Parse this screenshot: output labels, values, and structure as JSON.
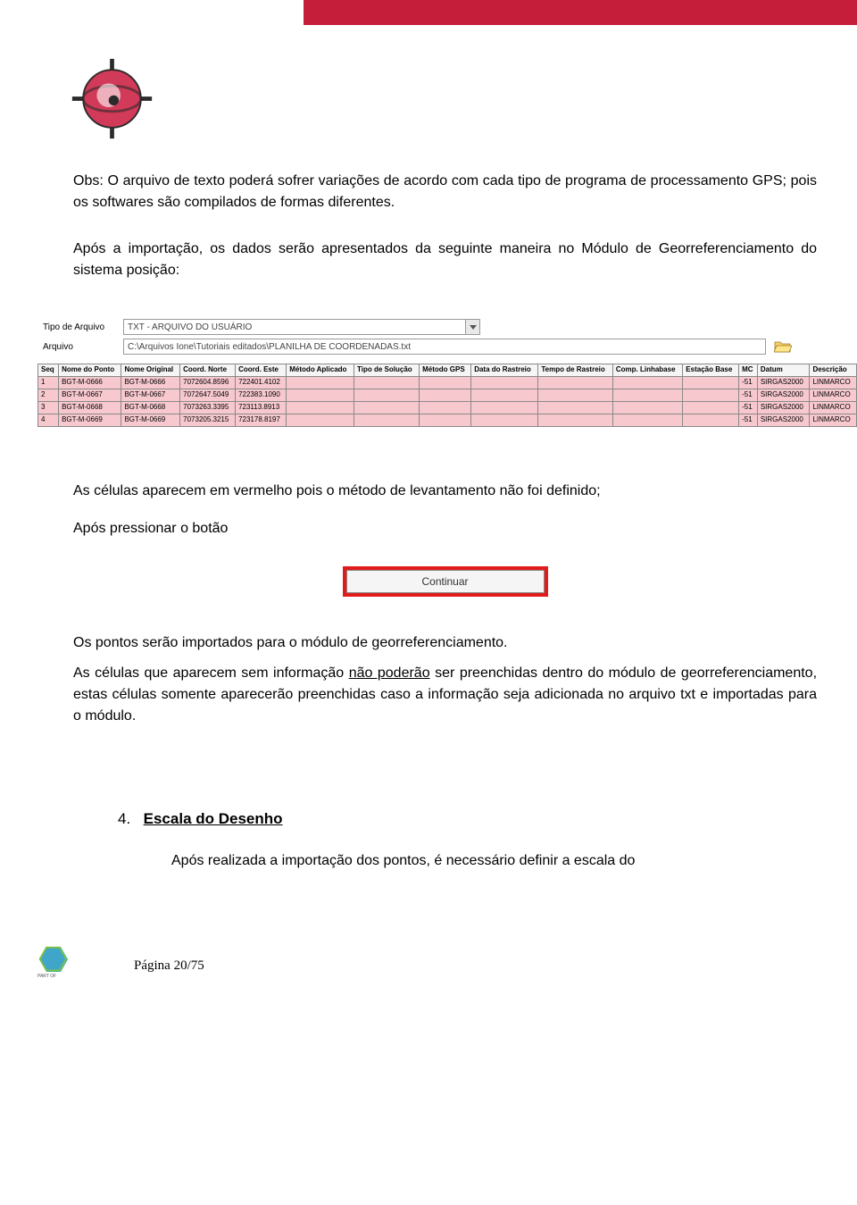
{
  "colors": {
    "header_bar": "#c41e3a",
    "row_highlight": "#f7c9cf",
    "button_border": "#e11b1b",
    "text": "#000000",
    "background": "#ffffff"
  },
  "paragraphs": {
    "p1": "Obs: O arquivo de texto poderá sofrer variações de acordo com cada tipo de programa de processamento GPS; pois os softwares são compilados de formas diferentes.",
    "p2": "Após a importação, os dados serão apresentados da seguinte maneira no Módulo de Georreferenciamento do sistema posição:",
    "p3": "As células aparecem em vermelho pois o método de levantamento não foi definido;",
    "p4": "Após pressionar o botão",
    "p5": "Os pontos serão importados para o módulo de georreferenciamento.",
    "p6a": "As células que aparecem sem informação ",
    "p6u": "não poderão",
    "p6b": " ser preenchidas dentro do módulo de  georreferenciamento, estas células somente aparecerão preenchidas caso a informação seja adicionada no arquivo txt e importadas para o módulo."
  },
  "section4": {
    "number": "4.",
    "title": "Escala do Desenho",
    "body": "Após realizada a importação dos pontos, é necessário definir a escala do"
  },
  "screenshot": {
    "field_labels": {
      "tipo_arquivo": "Tipo de Arquivo",
      "arquivo": "Arquivo"
    },
    "field_values": {
      "tipo_arquivo": "TXT - ARQUIVO DO USUÁRIO",
      "arquivo": "C:\\Arquivos Ione\\Tutoriais editados\\PLANILHA DE COORDENADAS.txt"
    },
    "columns": [
      "Seq",
      "Nome do Ponto",
      "Nome Original",
      "Coord. Norte",
      "Coord. Este",
      "Método Aplicado",
      "Tipo de Solução",
      "Método GPS",
      "Data do Rastreio",
      "Tempo de Rastreio",
      "Comp. Linhabase",
      "Estação Base",
      "MC",
      "Datum",
      "Descrição"
    ],
    "rows": [
      {
        "seq": "1",
        "nome": "BGT-M-0666",
        "orig": "BGT-M-0666",
        "norte": "7072604.8596",
        "este": "722401.4102",
        "mc": "-51",
        "datum": "SIRGAS2000",
        "desc": "LINMARCO"
      },
      {
        "seq": "2",
        "nome": "BGT-M-0667",
        "orig": "BGT-M-0667",
        "norte": "7072647.5049",
        "este": "722383.1090",
        "mc": "-51",
        "datum": "SIRGAS2000",
        "desc": "LINMARCO"
      },
      {
        "seq": "3",
        "nome": "BGT-M-0668",
        "orig": "BGT-M-0668",
        "norte": "7073263.3395",
        "este": "723113.8913",
        "mc": "-51",
        "datum": "SIRGAS2000",
        "desc": "LINMARCO"
      },
      {
        "seq": "4",
        "nome": "BGT-M-0669",
        "orig": "BGT-M-0669",
        "norte": "7073205.3215",
        "este": "723178.8197",
        "mc": "-51",
        "datum": "SIRGAS2000",
        "desc": "LINMARCO"
      }
    ],
    "button_label": "Continuar"
  },
  "footer": {
    "page_label": "Página ",
    "page_number": "20/75",
    "brand_line1": "PART OF",
    "brand_line2": "HEXAGON"
  }
}
